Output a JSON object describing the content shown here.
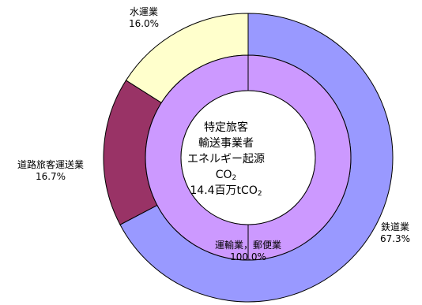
{
  "chart_data": {
    "type": "pie",
    "outer_ring": [
      {
        "label": "鉄道業",
        "value": 67.3,
        "value_label": "67.3%",
        "color": "#9999ff"
      },
      {
        "label": "道路旅客運送業",
        "value": 16.7,
        "value_label": "16.7%",
        "color": "#993366"
      },
      {
        "label": "水運業",
        "value": 16.0,
        "value_label": "16.0%",
        "color": "#ffffcc"
      }
    ],
    "inner_ring": [
      {
        "label": "運輸業，郵便業",
        "value": 100.0,
        "value_label": "100.0%",
        "color": "#cc99ff"
      }
    ],
    "center_text": {
      "line1": "特定旅客",
      "line2": "輸送事業者",
      "line3_prefix": "エネルギー起源CO",
      "line3_sub": "2",
      "line4_prefix": "14.4百万tCO",
      "line4_sub": "2"
    }
  }
}
